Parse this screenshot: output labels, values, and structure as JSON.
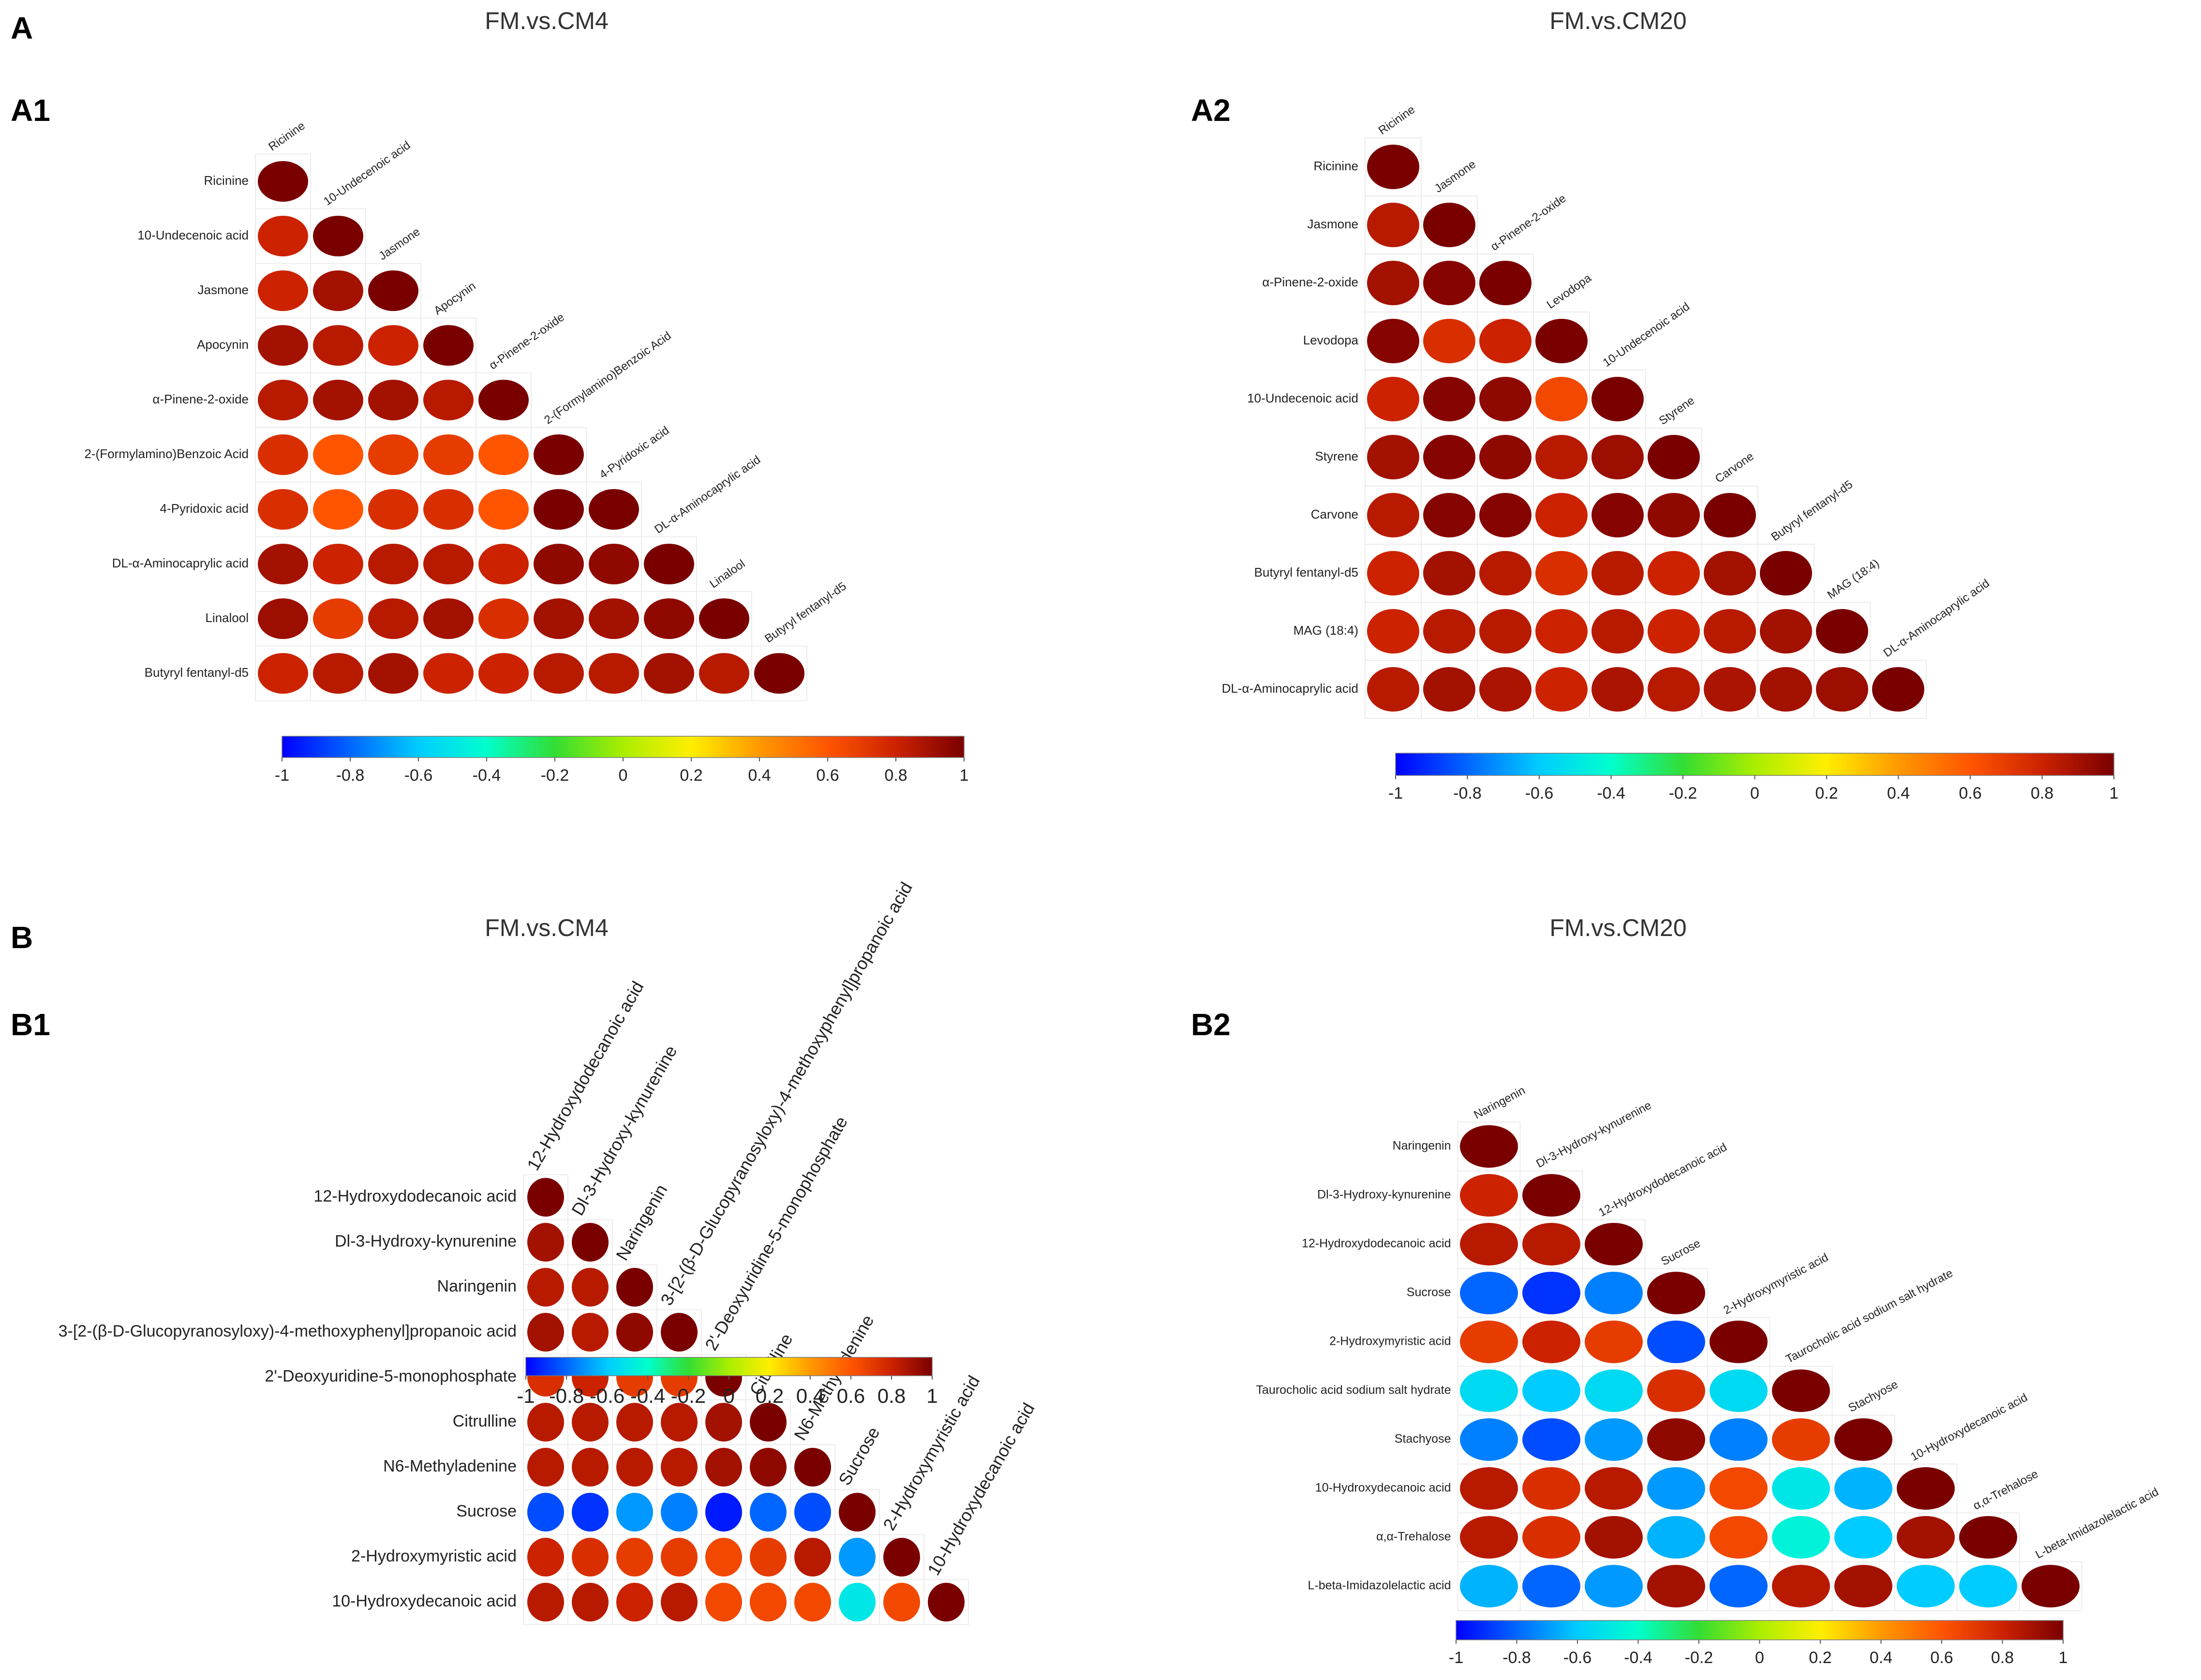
{
  "figure": {
    "letters": {
      "A": "A",
      "B": "B"
    },
    "colorscale": [
      "#0000ff",
      "#0066ff",
      "#00ccff",
      "#00ffcc",
      "#33dd33",
      "#aaee00",
      "#ffee00",
      "#ff9900",
      "#ff5500",
      "#cc2200",
      "#7a0000"
    ]
  },
  "chart_data": [
    {
      "id": "A1",
      "panel_label": "A1",
      "group_title": "FM.vs.CM4",
      "type": "heatmap",
      "variables": [
        "Ricinine",
        "10-Undecenoic acid",
        "Jasmone",
        "Apocynin",
        "α-Pinene-2-oxide",
        "2-(Formylamino)Benzoic Acid",
        "4-Pyridoxic acid",
        "DL-α-Aminocaprylic acid",
        "Linalool",
        "Butyryl fentanyl-d5"
      ],
      "lower_triangle": [
        [
          1
        ],
        [
          0.8,
          1
        ],
        [
          0.8,
          0.9,
          1
        ],
        [
          0.9,
          0.85,
          0.8,
          1
        ],
        [
          0.85,
          0.9,
          0.9,
          0.85,
          1
        ],
        [
          0.75,
          0.6,
          0.7,
          0.7,
          0.6,
          1
        ],
        [
          0.75,
          0.6,
          0.75,
          0.75,
          0.6,
          1,
          1
        ],
        [
          0.9,
          0.8,
          0.85,
          0.85,
          0.8,
          0.95,
          0.95,
          1
        ],
        [
          0.92,
          0.7,
          0.85,
          0.9,
          0.75,
          0.9,
          0.9,
          0.95,
          1
        ],
        [
          0.8,
          0.85,
          0.9,
          0.8,
          0.8,
          0.85,
          0.85,
          0.9,
          0.85,
          1
        ]
      ],
      "scale": {
        "min": -1,
        "max": 1,
        "ticks": [
          "-1",
          "-0.8",
          "-0.6",
          "-0.4",
          "-0.2",
          "0",
          "0.2",
          "0.4",
          "0.6",
          "0.8",
          "1"
        ]
      }
    },
    {
      "id": "A2",
      "panel_label": "A2",
      "group_title": "FM.vs.CM20",
      "type": "heatmap",
      "variables": [
        "Ricinine",
        "Jasmone",
        "α-Pinene-2-oxide",
        "Levodopa",
        "10-Undecenoic acid",
        "Styrene",
        "Carvone",
        "Butyryl fentanyl-d5",
        "MAG (18:4)",
        "DL-α-Aminocaprylic acid"
      ],
      "lower_triangle": [
        [
          1
        ],
        [
          0.85,
          1
        ],
        [
          0.9,
          0.97,
          1
        ],
        [
          0.97,
          0.75,
          0.8,
          1
        ],
        [
          0.8,
          0.97,
          0.95,
          0.65,
          1
        ],
        [
          0.9,
          0.97,
          0.95,
          0.85,
          0.92,
          1
        ],
        [
          0.85,
          0.97,
          0.97,
          0.8,
          0.97,
          0.95,
          1
        ],
        [
          0.8,
          0.9,
          0.85,
          0.75,
          0.85,
          0.8,
          0.9,
          1
        ],
        [
          0.8,
          0.85,
          0.85,
          0.8,
          0.85,
          0.8,
          0.85,
          0.9,
          1
        ],
        [
          0.85,
          0.9,
          0.88,
          0.8,
          0.88,
          0.85,
          0.88,
          0.9,
          0.92,
          1
        ]
      ],
      "scale": {
        "min": -1,
        "max": 1,
        "ticks": [
          "-1",
          "-0.8",
          "-0.6",
          "-0.4",
          "-0.2",
          "0",
          "0.2",
          "0.4",
          "0.6",
          "0.8",
          "1"
        ]
      }
    },
    {
      "id": "B1",
      "panel_label": "B1",
      "group_title": "FM.vs.CM4",
      "type": "heatmap",
      "variables": [
        "12-Hydroxydodecanoic acid",
        "Dl-3-Hydroxy-kynurenine",
        "Naringenin",
        "3-[2-(β-D-Glucopyranosyloxy)-4-methoxyphenyl]propanoic acid",
        "2'-Deoxyuridine-5-monophosphate",
        "Citrulline",
        "N6-Methyladenine",
        "Sucrose",
        "2-Hydroxymyristic acid",
        "10-Hydroxydecanoic acid"
      ],
      "lower_triangle": [
        [
          1
        ],
        [
          0.9,
          1
        ],
        [
          0.85,
          0.85,
          1
        ],
        [
          0.9,
          0.85,
          0.95,
          1
        ],
        [
          0.75,
          0.8,
          0.7,
          0.7,
          1
        ],
        [
          0.85,
          0.85,
          0.85,
          0.85,
          0.9,
          1
        ],
        [
          0.85,
          0.85,
          0.85,
          0.85,
          0.9,
          0.95,
          1
        ],
        [
          -0.85,
          -0.9,
          -0.7,
          -0.75,
          -0.95,
          -0.8,
          -0.85,
          1
        ],
        [
          0.8,
          0.75,
          0.7,
          0.7,
          0.65,
          0.7,
          0.85,
          -0.7,
          1
        ],
        [
          0.85,
          0.85,
          0.8,
          0.85,
          0.65,
          0.65,
          0.65,
          -0.5,
          0.65,
          1
        ]
      ],
      "scale": {
        "min": -1,
        "max": 1,
        "ticks": [
          "-1",
          "-0.8",
          "-0.6",
          "-0.4",
          "-0.2",
          "0",
          "0.2",
          "0.4",
          "0.6",
          "0.8",
          "1"
        ]
      }
    },
    {
      "id": "B2",
      "panel_label": "B2",
      "group_title": "FM.vs.CM20",
      "type": "heatmap",
      "variables": [
        "Naringenin",
        "Dl-3-Hydroxy-kynurenine",
        "12-Hydroxydodecanoic acid",
        "Sucrose",
        "2-Hydroxymyristic acid",
        "Taurocholic acid sodium salt hydrate",
        "Stachyose",
        "10-Hydroxydecanoic acid",
        "α,α-Trehalose",
        "L-beta-Imidazolelactic acid"
      ],
      "lower_triangle": [
        [
          1
        ],
        [
          0.8,
          1
        ],
        [
          0.85,
          0.85,
          1
        ],
        [
          -0.8,
          -0.9,
          -0.75,
          1
        ],
        [
          0.7,
          0.8,
          0.7,
          -0.85,
          1
        ],
        [
          -0.55,
          -0.6,
          -0.55,
          0.75,
          -0.55,
          1
        ],
        [
          -0.75,
          -0.85,
          -0.7,
          0.95,
          -0.75,
          0.7,
          1
        ],
        [
          0.85,
          0.75,
          0.85,
          -0.7,
          0.65,
          -0.5,
          -0.65,
          1
        ],
        [
          0.85,
          0.75,
          0.9,
          -0.65,
          0.65,
          -0.45,
          -0.6,
          0.9,
          1
        ],
        [
          -0.65,
          -0.8,
          -0.7,
          0.9,
          -0.8,
          0.85,
          0.9,
          -0.6,
          -0.6,
          1
        ]
      ],
      "scale": {
        "min": -1,
        "max": 1,
        "ticks": [
          "-1",
          "-0.8",
          "-0.6",
          "-0.4",
          "-0.2",
          "0",
          "0.2",
          "0.4",
          "0.6",
          "0.8",
          "1"
        ]
      }
    }
  ]
}
